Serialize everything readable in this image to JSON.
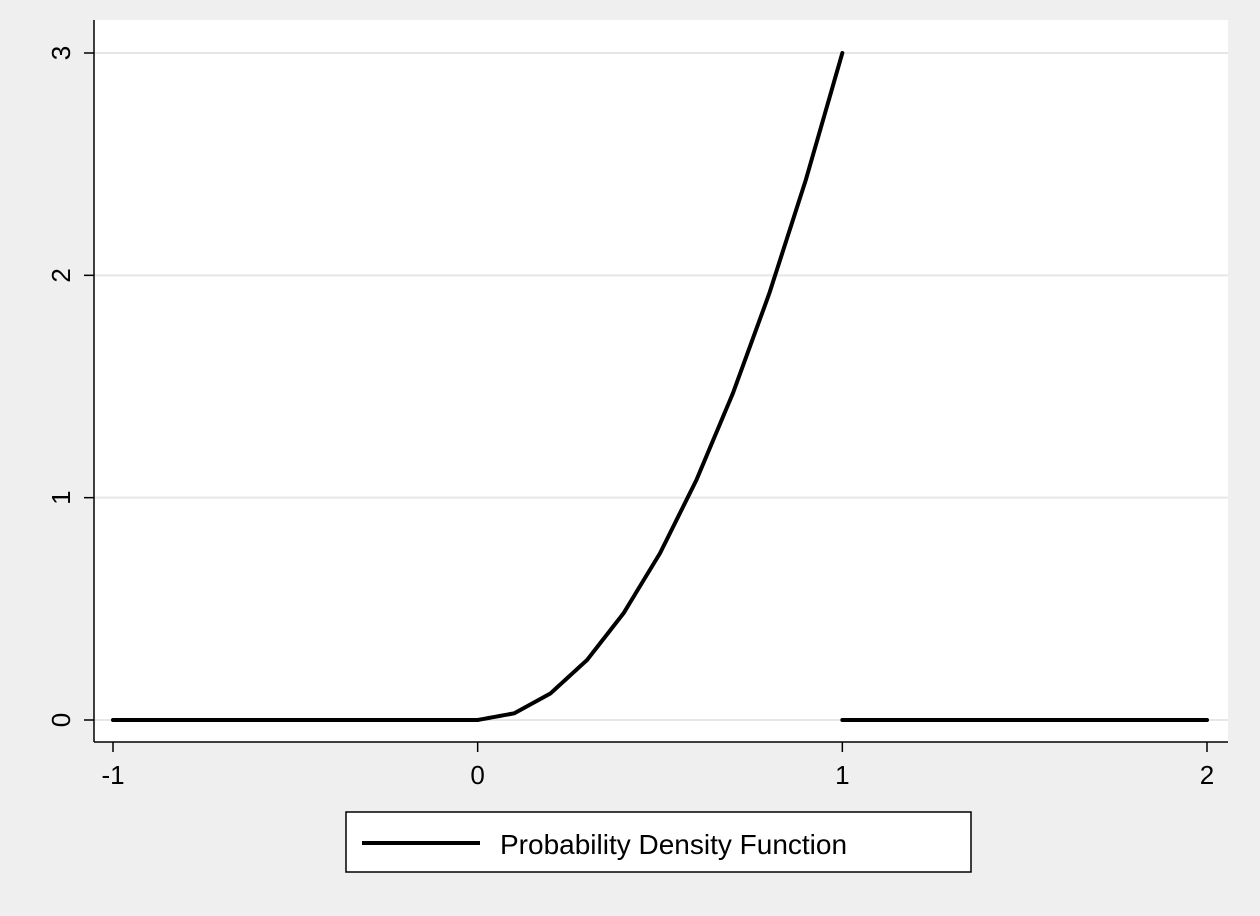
{
  "chart_data": {
    "type": "line",
    "title": "",
    "xlabel": "",
    "ylabel": "",
    "xlim": [
      -1,
      2
    ],
    "ylim": [
      0,
      3
    ],
    "x_ticks": [
      -1,
      0,
      1,
      2
    ],
    "x_tick_labels": [
      "-1",
      "0",
      "1",
      "2"
    ],
    "y_ticks": [
      0,
      1,
      2,
      3
    ],
    "y_tick_labels": [
      "0",
      "1",
      "2",
      "3"
    ],
    "grid": "horizontal",
    "legend_position": "bottom-center",
    "series": [
      {
        "name": "Probability Density Function",
        "color": "#000000",
        "segments": [
          [
            [
              -1,
              0
            ],
            [
              0,
              0
            ]
          ],
          [
            [
              0,
              0
            ],
            [
              0.1,
              0.03
            ],
            [
              0.2,
              0.12
            ],
            [
              0.3,
              0.27
            ],
            [
              0.4,
              0.48
            ],
            [
              0.5,
              0.75
            ],
            [
              0.6,
              1.08
            ],
            [
              0.7,
              1.47
            ],
            [
              0.8,
              1.92
            ],
            [
              0.9,
              2.43
            ],
            [
              1,
              3
            ]
          ],
          [
            [
              1,
              0
            ],
            [
              2,
              0
            ]
          ]
        ]
      }
    ]
  },
  "legend": {
    "label": "Probability Density Function"
  }
}
